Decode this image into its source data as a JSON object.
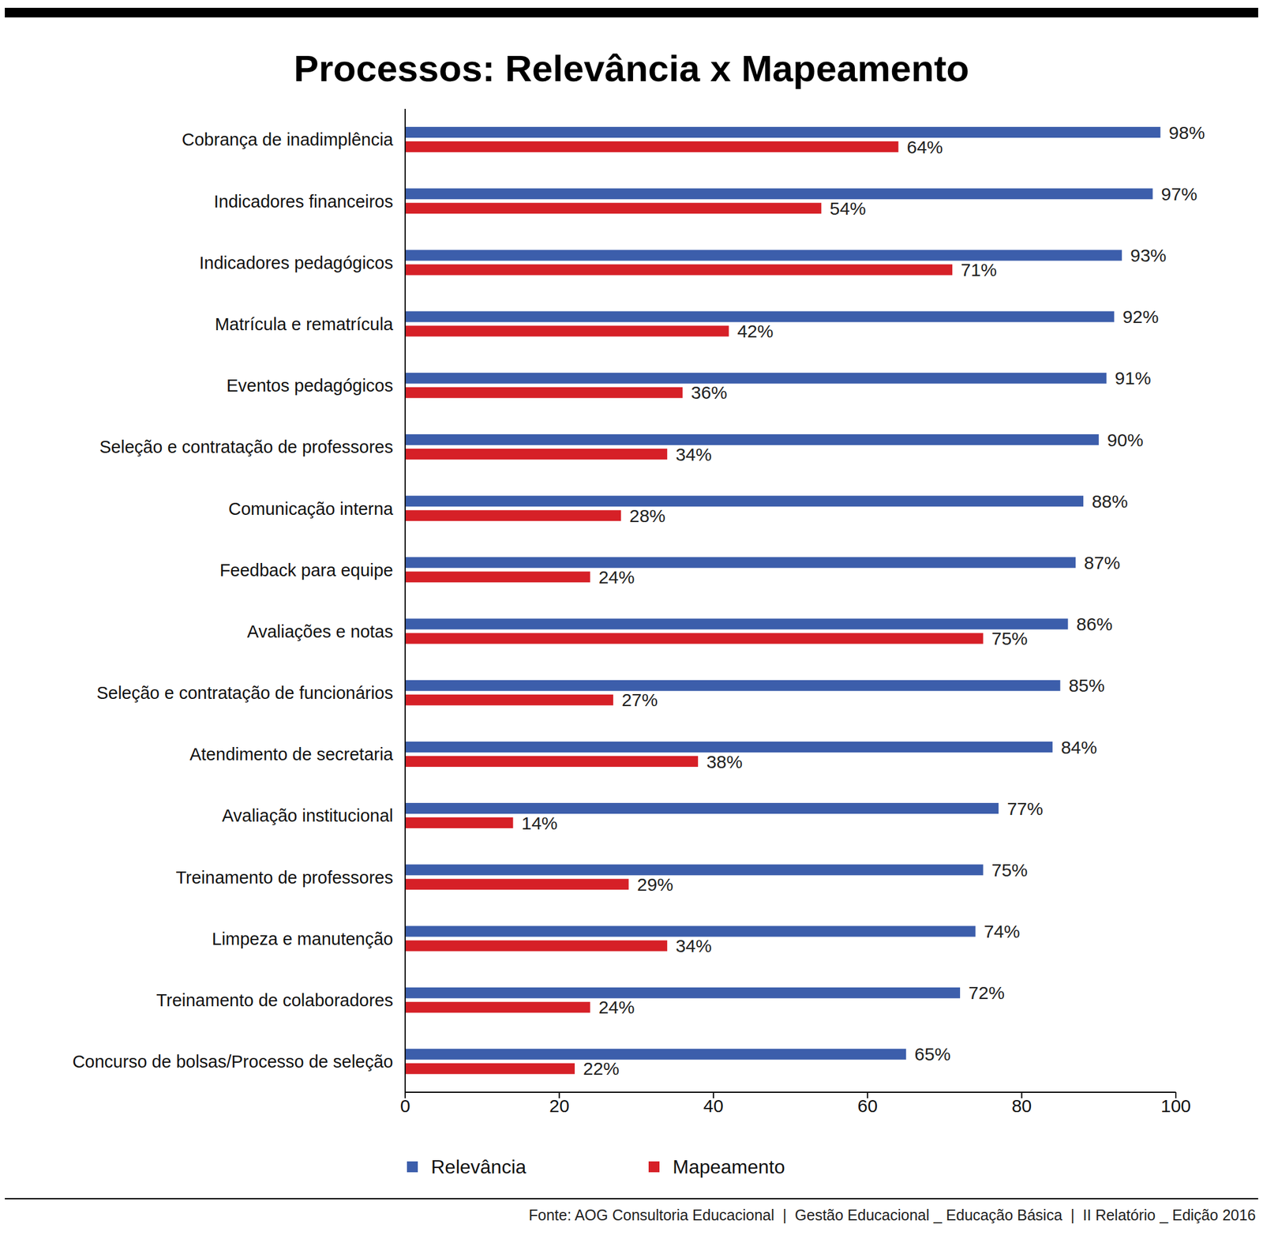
{
  "chart_data": {
    "type": "bar",
    "orientation": "horizontal",
    "title": "Processos: Relevância x Mapeamento",
    "source": "Fonte: AOG Consultoria Educacional  |  Gestão Educacional _ Educação Básica  |  II Relatório _ Edição 2016",
    "categories": [
      "Cobrança de inadimplência",
      "Indicadores financeiros",
      "Indicadores pedagógicos",
      "Matrícula e rematrícula",
      "Eventos pedagógicos",
      "Seleção e contratação de professores",
      "Comunicação interna",
      "Feedback para equipe",
      "Avaliações e notas",
      "Seleção e contratação de funcionários",
      "Atendimento de secretaria",
      "Avaliação institucional",
      "Treinamento de professores",
      "Limpeza e manutenção",
      "Treinamento de colaboradores",
      "Concurso de bolsas/Processo de seleção"
    ],
    "series": [
      {
        "name": "Relevância",
        "color": "#3c5eab",
        "values": [
          98,
          97,
          93,
          92,
          91,
          90,
          88,
          87,
          86,
          85,
          84,
          77,
          75,
          74,
          72,
          65
        ],
        "value_labels": [
          "98%",
          "97%",
          "93%",
          "92%",
          "91%",
          "90%",
          "88%",
          "87%",
          "86%",
          "85%",
          "84%",
          "77%",
          "75%",
          "74%",
          "72%",
          "65%"
        ]
      },
      {
        "name": "Mapeamento",
        "color": "#d62027",
        "values": [
          64,
          54,
          71,
          42,
          36,
          34,
          28,
          24,
          75,
          27,
          38,
          14,
          29,
          34,
          24,
          22
        ],
        "value_labels": [
          "64%",
          "54%",
          "71%",
          "42%",
          "36%",
          "34%",
          "28%",
          "24%",
          "75%",
          "27%",
          "38%",
          "14%",
          "29%",
          "34%",
          "24%",
          "22%"
        ]
      }
    ],
    "xlim": [
      0,
      100
    ],
    "xticks": [
      0,
      20,
      40,
      60,
      80,
      100
    ],
    "grid": false,
    "legend": "bottom",
    "data_labels": true
  }
}
